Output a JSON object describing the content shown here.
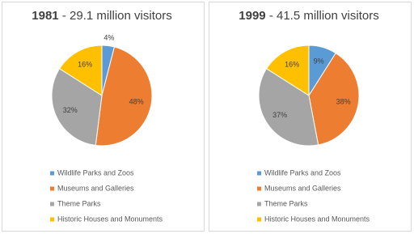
{
  "chart_data": [
    {
      "type": "pie",
      "title_year": "1981",
      "title_text": "- 29.1 million visitors",
      "categories": [
        "Wildlife Parks and Zoos",
        "Museums and Galleries",
        "Theme Parks",
        "Historic Houses and Monuments"
      ],
      "values": [
        4,
        48,
        32,
        16
      ],
      "value_labels": [
        "4%",
        "48%",
        "32%",
        "16%"
      ],
      "colors": [
        "#5b9bd5",
        "#ed7d31",
        "#a5a5a5",
        "#ffc000"
      ]
    },
    {
      "type": "pie",
      "title_year": "1999",
      "title_text": "- 41.5 million visitors",
      "categories": [
        "Wildlife Parks and Zoos",
        "Museums and Galleries",
        "Theme Parks",
        "Historic Houses and Monuments"
      ],
      "values": [
        9,
        38,
        37,
        16
      ],
      "value_labels": [
        "9%",
        "38%",
        "37%",
        "16%"
      ],
      "colors": [
        "#5b9bd5",
        "#ed7d31",
        "#a5a5a5",
        "#ffc000"
      ]
    }
  ]
}
